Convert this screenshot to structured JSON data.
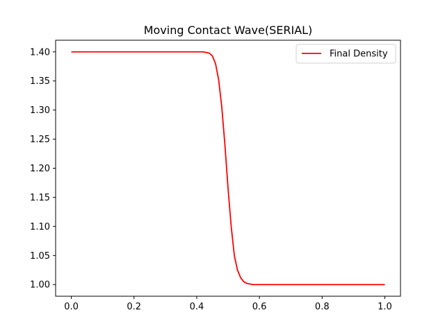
{
  "chart_data": {
    "type": "line",
    "title": "Moving Contact Wave(SERIAL)",
    "xlabel": "",
    "ylabel": "",
    "xlim": [
      -0.05,
      1.05
    ],
    "ylim": [
      0.98,
      1.42
    ],
    "xticks": [
      0.0,
      0.2,
      0.4,
      0.6,
      0.8,
      1.0
    ],
    "xtick_labels": [
      "0.0",
      "0.2",
      "0.4",
      "0.6",
      "0.8",
      "1.0"
    ],
    "yticks": [
      1.0,
      1.05,
      1.1,
      1.15,
      1.2,
      1.25,
      1.3,
      1.35,
      1.4
    ],
    "ytick_labels": [
      "1.00",
      "1.05",
      "1.10",
      "1.15",
      "1.20",
      "1.25",
      "1.30",
      "1.35",
      "1.40"
    ],
    "grid": false,
    "legend_position": "top-right",
    "series": [
      {
        "name": "Final Density",
        "color": "#ff0000",
        "x": [
          0.0,
          0.1,
          0.2,
          0.3,
          0.4,
          0.42,
          0.43,
          0.44,
          0.45,
          0.46,
          0.47,
          0.48,
          0.49,
          0.5,
          0.51,
          0.52,
          0.53,
          0.54,
          0.55,
          0.56,
          0.57,
          0.58,
          0.6,
          0.7,
          0.8,
          0.9,
          1.0
        ],
        "y": [
          1.4,
          1.4,
          1.4,
          1.4,
          1.4,
          1.4,
          1.399,
          1.398,
          1.393,
          1.38,
          1.352,
          1.305,
          1.24,
          1.165,
          1.1,
          1.05,
          1.025,
          1.012,
          1.005,
          1.002,
          1.001,
          1.0,
          1.0,
          1.0,
          1.0,
          1.0,
          1.0
        ]
      }
    ]
  }
}
